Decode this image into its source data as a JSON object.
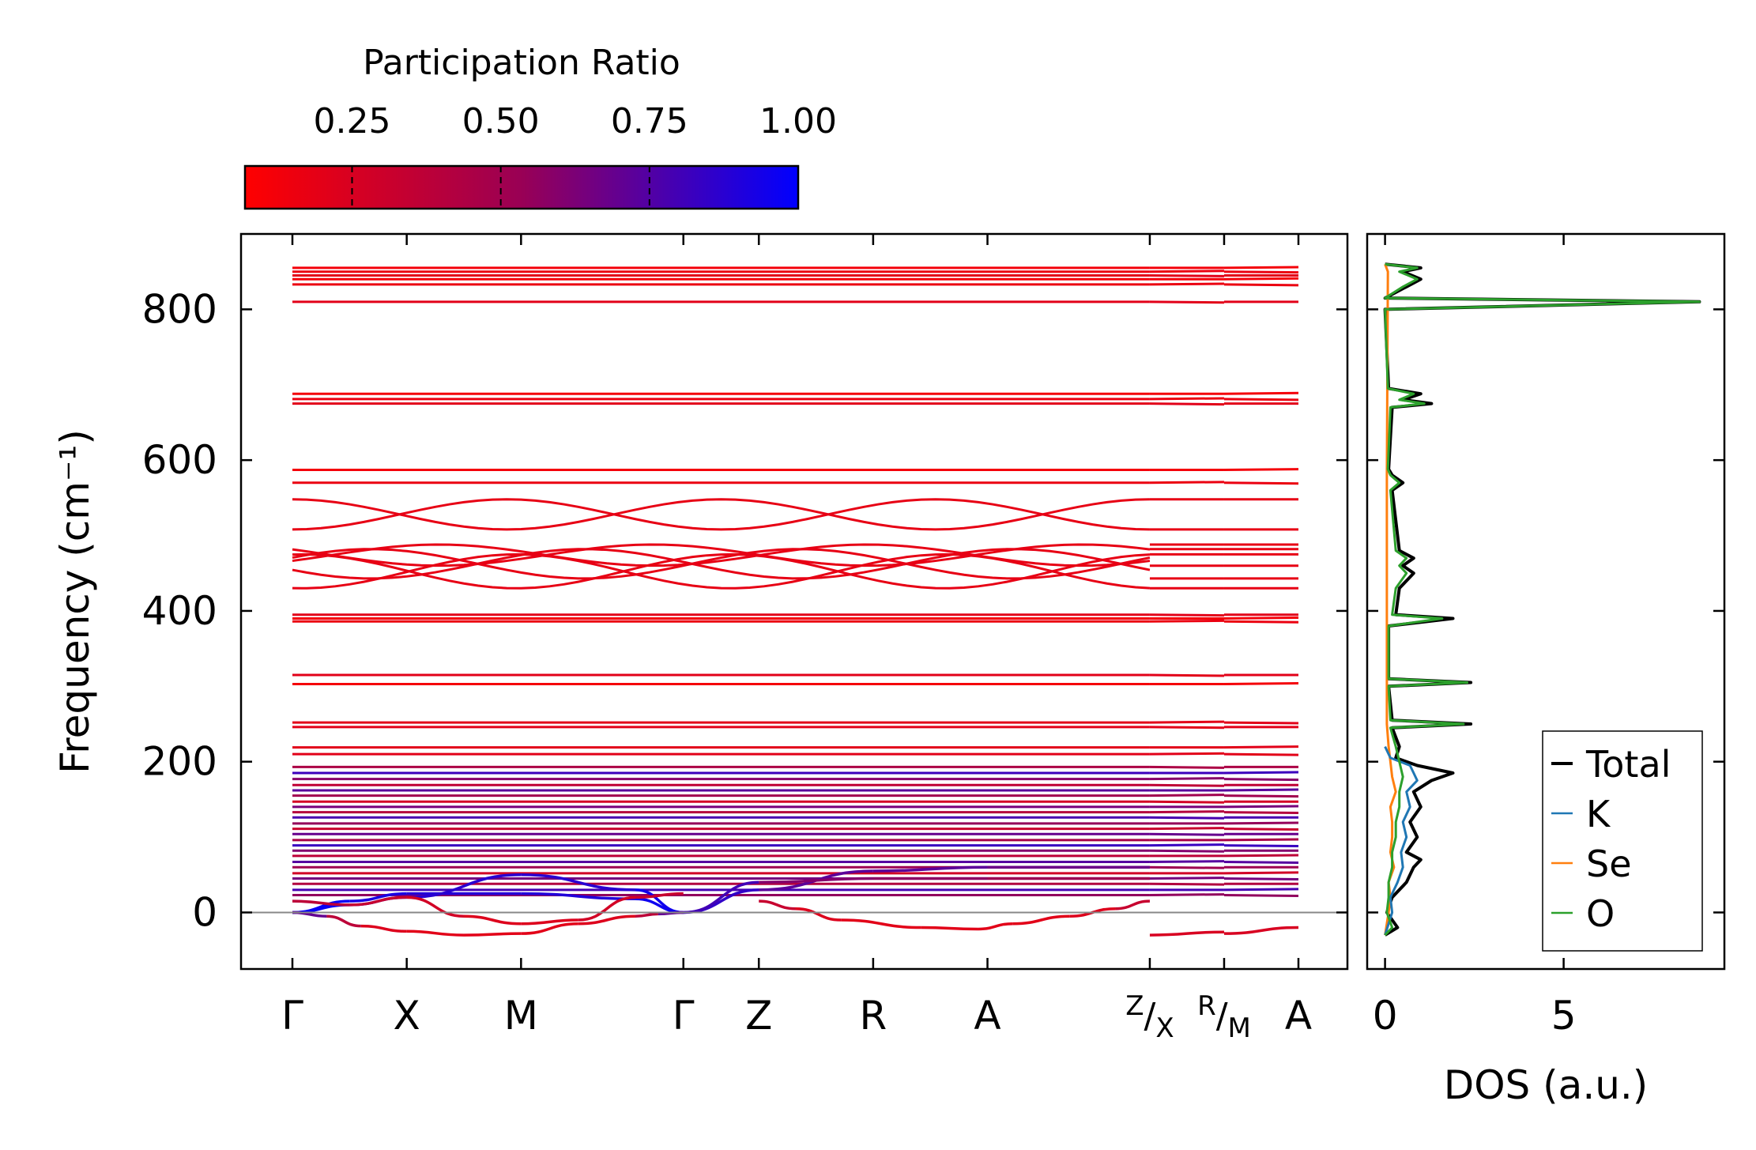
{
  "chart_data": [
    {
      "type": "line",
      "subtype": "phonon-band-structure",
      "ylabel": "Frequency (cm⁻¹)",
      "ylim": [
        -75,
        900
      ],
      "yticks": [
        "0",
        "200",
        "400",
        "600",
        "800"
      ],
      "kpath": {
        "labels": [
          "Γ",
          "X",
          "M",
          "Γ",
          "Z",
          "R",
          "A",
          "Z/X",
          "R/M",
          "A"
        ],
        "positions": [
          0,
          1,
          2,
          3.42,
          4.08,
          5.08,
          6.08,
          7.5,
          8.15,
          8.8
        ],
        "segment_breaks": [
          7.5,
          8.15
        ]
      },
      "colorbar": {
        "label": "Participation Ratio",
        "ticks": [
          "0.25",
          "0.50",
          "0.75",
          "1.00"
        ],
        "range": [
          0.07,
          1.0
        ],
        "low_color": "#ff0000",
        "mid_color": "#990055",
        "high_color": "#0000ff"
      },
      "flat_bands": [
        855,
        850,
        845,
        840,
        833,
        810,
        688,
        681,
        675,
        587,
        570,
        395,
        390,
        386,
        315,
        303,
        252,
        246,
        219,
        210,
        193,
        185,
        177,
        169,
        162,
        155,
        147,
        140,
        133,
        126,
        118,
        111,
        104,
        96,
        89,
        82,
        75,
        67,
        60,
        52,
        45,
        38,
        30,
        23
      ],
      "crossing_pairs": [
        [
          548,
          508
        ],
        [
          488,
          460
        ],
        [
          482,
          443
        ],
        [
          475,
          430
        ]
      ],
      "dispersive_bands": [
        {
          "name": "acoustic-1",
          "x": [
            0,
            0.5,
            1.0,
            2.0,
            3.0,
            3.42,
            4.08,
            5.08,
            6.08,
            7.5
          ],
          "y": [
            0,
            15,
            25,
            25,
            18,
            0,
            30,
            55,
            60,
            60
          ],
          "pr": [
            1.0,
            0.95,
            0.9,
            0.88,
            0.92,
            1.0,
            0.7,
            0.75,
            0.7,
            0.65
          ]
        },
        {
          "name": "acoustic-2",
          "x": [
            0,
            0.5,
            1.0,
            2.0,
            3.0,
            3.42,
            4.08,
            5.08,
            6.08,
            7.5
          ],
          "y": [
            0,
            10,
            20,
            50,
            30,
            0,
            40,
            45,
            45,
            45
          ],
          "pr": [
            1.0,
            0.95,
            0.9,
            0.85,
            0.9,
            1.0,
            0.6,
            0.6,
            0.55,
            0.5
          ]
        },
        {
          "name": "soft-mode-1",
          "x": [
            0,
            0.3,
            0.6,
            1.0,
            1.5,
            2.0,
            2.5,
            3.0,
            3.2,
            3.42
          ],
          "y": [
            0,
            -5,
            -18,
            -25,
            -30,
            -28,
            -15,
            -5,
            -2,
            0
          ],
          "pr": [
            0.9,
            0.5,
            0.25,
            0.2,
            0.2,
            0.2,
            0.2,
            0.25,
            0.5,
            0.9
          ]
        },
        {
          "name": "soft-mode-2",
          "x": [
            4.08,
            4.4,
            4.8,
            5.5,
            6.0,
            6.3,
            6.8,
            7.2,
            7.5
          ],
          "y": [
            15,
            5,
            -10,
            -20,
            -22,
            -15,
            -5,
            5,
            15
          ],
          "pr": [
            0.4,
            0.25,
            0.2,
            0.2,
            0.2,
            0.2,
            0.2,
            0.25,
            0.4
          ]
        },
        {
          "name": "low-optic",
          "x": [
            0,
            0.5,
            1.0,
            1.5,
            2.0,
            2.5,
            3.0,
            3.42
          ],
          "y": [
            15,
            10,
            20,
            -5,
            -15,
            -10,
            20,
            25
          ],
          "pr": [
            0.4,
            0.35,
            0.3,
            0.25,
            0.2,
            0.25,
            0.3,
            0.35
          ]
        },
        {
          "name": "segment-Z/X-R/M",
          "x": [
            7.5,
            8.15
          ],
          "y": [
            -30,
            -26
          ],
          "pr": [
            0.25,
            0.25
          ]
        },
        {
          "name": "segment-R/M-A",
          "x": [
            8.15,
            8.8
          ],
          "y": [
            -28,
            -20
          ],
          "pr": [
            0.25,
            0.25
          ]
        }
      ]
    },
    {
      "type": "line",
      "subtype": "density-of-states",
      "xlabel": "DOS (a.u.)",
      "xlim": [
        -0.5,
        9.5
      ],
      "xticks": [
        "0",
        "5"
      ],
      "ylim": [
        -75,
        900
      ],
      "legend": {
        "placement": "lower-right"
      },
      "series": [
        {
          "name": "Total",
          "color": "#000000",
          "y": [
            -30,
            -20,
            0,
            20,
            40,
            60,
            70,
            80,
            100,
            120,
            140,
            160,
            175,
            185,
            195,
            205,
            220,
            245,
            250,
            255,
            300,
            305,
            310,
            380,
            390,
            395,
            430,
            450,
            460,
            470,
            480,
            560,
            570,
            580,
            588,
            670,
            675,
            680,
            688,
            695,
            800,
            810,
            815,
            830,
            840,
            850,
            855,
            860
          ],
          "values": [
            0.0,
            0.35,
            0.05,
            0.2,
            0.6,
            0.8,
            1.0,
            0.6,
            0.9,
            0.7,
            1.0,
            0.8,
            1.3,
            1.9,
            0.9,
            0.3,
            0.4,
            0.2,
            2.4,
            0.2,
            0.1,
            2.4,
            0.1,
            0.1,
            1.9,
            0.3,
            0.4,
            0.8,
            0.5,
            0.8,
            0.4,
            0.2,
            0.5,
            0.2,
            0.1,
            0.2,
            1.3,
            0.5,
            1.0,
            0.1,
            0.0,
            8.8,
            0.0,
            0.6,
            1.0,
            0.5,
            1.0,
            0.0
          ]
        },
        {
          "name": "K",
          "color": "#1f77b4",
          "y": [
            -30,
            0,
            20,
            40,
            60,
            80,
            100,
            120,
            140,
            160,
            175,
            185,
            195,
            205,
            220
          ],
          "values": [
            0.0,
            0.2,
            0.15,
            0.35,
            0.5,
            0.45,
            0.6,
            0.5,
            0.7,
            0.6,
            0.9,
            0.8,
            0.7,
            0.15,
            0.0
          ]
        },
        {
          "name": "Se",
          "color": "#ff7f0e",
          "y": [
            -30,
            0,
            20,
            40,
            60,
            80,
            100,
            120,
            140,
            160,
            180,
            200,
            220,
            250,
            300,
            390,
            460,
            580,
            850,
            860
          ],
          "values": [
            0.0,
            0.1,
            0.15,
            0.1,
            0.25,
            0.15,
            0.2,
            0.2,
            0.15,
            0.3,
            0.2,
            0.15,
            0.1,
            0.05,
            0.05,
            0.05,
            0.05,
            0.05,
            0.08,
            0.0
          ]
        },
        {
          "name": "O",
          "color": "#2ca02c",
          "y": [
            -30,
            -20,
            0,
            20,
            40,
            60,
            80,
            100,
            120,
            140,
            160,
            180,
            200,
            220,
            245,
            250,
            255,
            300,
            305,
            310,
            380,
            390,
            395,
            430,
            450,
            460,
            470,
            480,
            560,
            570,
            580,
            588,
            670,
            675,
            680,
            688,
            695,
            800,
            810,
            815,
            830,
            840,
            850,
            855,
            860
          ],
          "values": [
            0.0,
            0.2,
            0.05,
            0.1,
            0.1,
            0.2,
            0.2,
            0.3,
            0.3,
            0.4,
            0.4,
            0.5,
            0.4,
            0.3,
            0.15,
            2.2,
            0.15,
            0.1,
            2.3,
            0.1,
            0.1,
            1.6,
            0.2,
            0.3,
            0.6,
            0.4,
            0.6,
            0.3,
            0.15,
            0.4,
            0.15,
            0.08,
            0.15,
            1.1,
            0.4,
            0.8,
            0.08,
            0.0,
            8.8,
            0.0,
            0.5,
            0.9,
            0.4,
            0.9,
            0.0
          ]
        }
      ]
    }
  ]
}
